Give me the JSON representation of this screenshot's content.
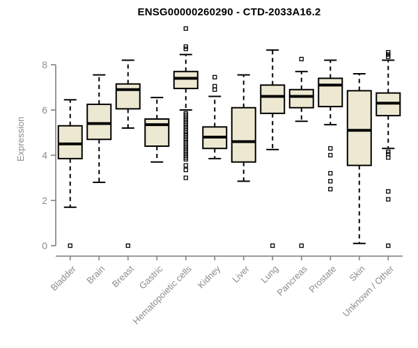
{
  "chart_data": {
    "type": "boxplot",
    "title": "ENSG00000260290 - CTD-2033A16.2",
    "ylabel": "Expression",
    "xlabel": "",
    "ylim": [
      0,
      9.7
    ],
    "yticks": [
      0,
      2,
      4,
      6,
      8
    ],
    "grid": false,
    "legend": false,
    "categories": [
      "Bladder",
      "Brain",
      "Breast",
      "Gastric",
      "Hematopoietic cells",
      "Kidney",
      "Liver",
      "Lung",
      "Pancreas",
      "Prostate",
      "Skin",
      "Unknown / Other"
    ],
    "series": [
      {
        "name": "Bladder",
        "whisker_low": 1.7,
        "q1": 3.85,
        "median": 4.5,
        "q3": 5.3,
        "whisker_high": 6.45,
        "outliers": [
          0
        ]
      },
      {
        "name": "Brain",
        "whisker_low": 2.8,
        "q1": 4.7,
        "median": 5.4,
        "q3": 6.25,
        "whisker_high": 7.55,
        "outliers": []
      },
      {
        "name": "Breast",
        "whisker_low": 5.2,
        "q1": 6.05,
        "median": 6.9,
        "q3": 7.15,
        "whisker_high": 8.2,
        "outliers": [
          0
        ]
      },
      {
        "name": "Gastric",
        "whisker_low": 3.7,
        "q1": 4.4,
        "median": 5.35,
        "q3": 5.6,
        "whisker_high": 6.55,
        "outliers": []
      },
      {
        "name": "Hematopoietic cells",
        "whisker_low": 6.0,
        "q1": 6.95,
        "median": 7.4,
        "q3": 7.7,
        "whisker_high": 8.45,
        "outliers": [
          9.6,
          8.8,
          8.7,
          5.85,
          5.78,
          5.7,
          5.62,
          5.55,
          5.48,
          5.4,
          5.32,
          5.25,
          5.18,
          5.1,
          5.02,
          4.95,
          4.88,
          4.8,
          4.72,
          4.65,
          4.58,
          4.5,
          4.42,
          4.35,
          4.28,
          4.2,
          4.12,
          4.05,
          3.98,
          3.9,
          3.82,
          3.55,
          3.35,
          3.0
        ]
      },
      {
        "name": "Kidney",
        "whisker_low": 3.85,
        "q1": 4.3,
        "median": 4.8,
        "q3": 5.25,
        "whisker_high": 6.6,
        "outliers": [
          7.45,
          7.05,
          6.9
        ]
      },
      {
        "name": "Liver",
        "whisker_low": 2.85,
        "q1": 3.7,
        "median": 4.6,
        "q3": 6.1,
        "whisker_high": 7.55,
        "outliers": []
      },
      {
        "name": "Lung",
        "whisker_low": 4.25,
        "q1": 5.85,
        "median": 6.6,
        "q3": 7.1,
        "whisker_high": 8.65,
        "outliers": [
          0
        ]
      },
      {
        "name": "Pancreas",
        "whisker_low": 5.5,
        "q1": 6.1,
        "median": 6.6,
        "q3": 6.9,
        "whisker_high": 7.7,
        "outliers": [
          8.25,
          0
        ]
      },
      {
        "name": "Prostate",
        "whisker_low": 5.35,
        "q1": 6.15,
        "median": 7.1,
        "q3": 7.4,
        "whisker_high": 8.2,
        "outliers": [
          4.3,
          4.0,
          3.2,
          2.85,
          2.5
        ]
      },
      {
        "name": "Skin",
        "whisker_low": 0.1,
        "q1": 3.55,
        "median": 5.1,
        "q3": 6.85,
        "whisker_high": 7.6,
        "outliers": []
      },
      {
        "name": "Unknown / Other",
        "whisker_low": 4.3,
        "q1": 5.75,
        "median": 6.3,
        "q3": 6.75,
        "whisker_high": 8.2,
        "outliers": [
          8.55,
          8.45,
          8.35,
          4.15,
          4.05,
          3.9,
          2.4,
          2.05,
          0
        ]
      }
    ],
    "colors": {
      "box_fill": "#EDE8D1",
      "box_border": "#000000",
      "median": "#000000",
      "whisker": "#000000",
      "outlier": "#000000",
      "axis": "#8C8C8C",
      "tick_label": "#8C8C8C",
      "title": "#000000"
    }
  }
}
